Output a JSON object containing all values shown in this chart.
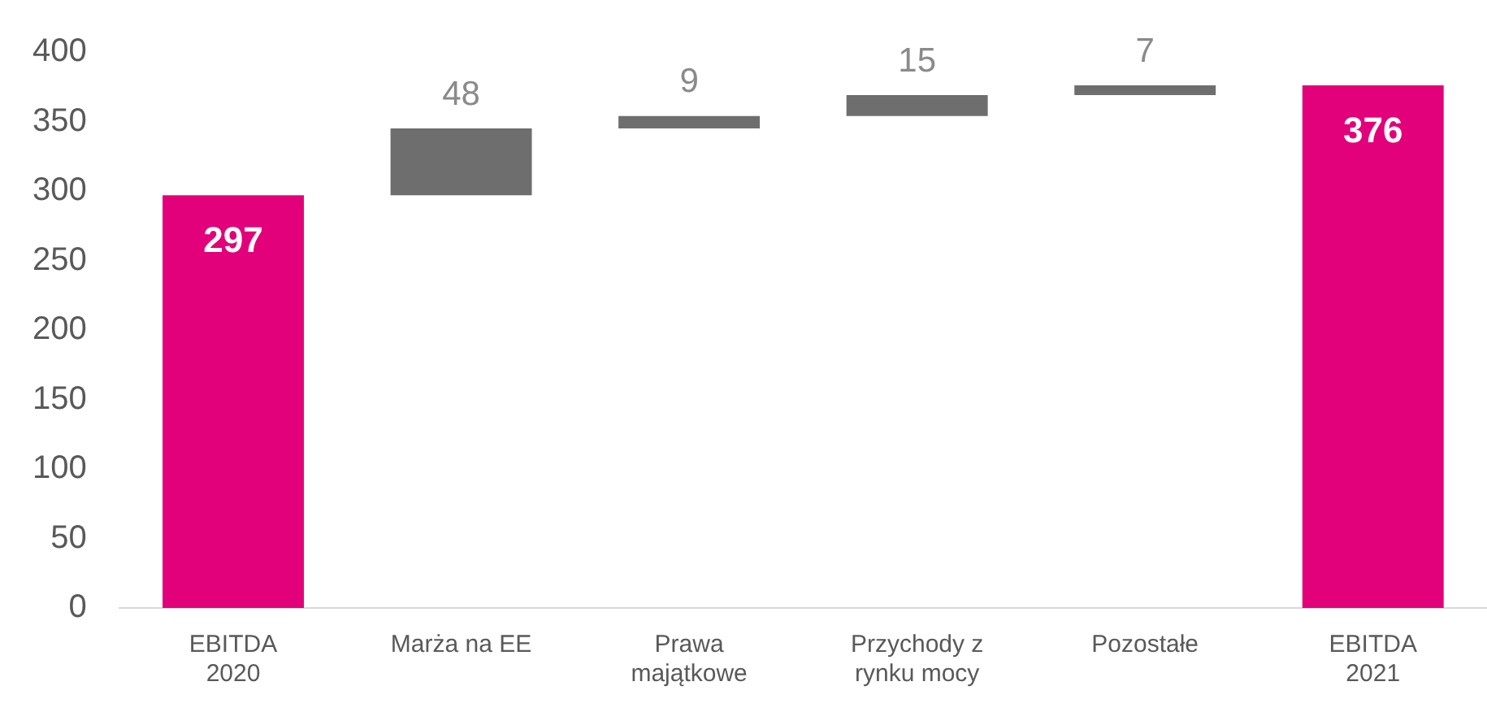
{
  "chart_data": {
    "type": "bar",
    "categories": [
      "EBITDA 2020",
      "Marża na EE",
      "Prawa majątkowe",
      "Przychody z rynku mocy",
      "Pozostałe",
      "EBITDA 2021"
    ],
    "values": [
      297,
      48,
      9,
      15,
      7,
      376
    ],
    "base": [
      null,
      297,
      345,
      354,
      369,
      null
    ],
    "colors": [
      "#e3007b",
      "#6e6e6e",
      "#6e6e6e",
      "#6e6e6e",
      "#6e6e6e",
      "#e3007b"
    ],
    "ylim": [
      0,
      400
    ],
    "yticks": [
      0,
      50,
      100,
      150,
      200,
      250,
      300,
      350,
      400
    ],
    "grid": false,
    "legend": false,
    "data_labels": true
  }
}
